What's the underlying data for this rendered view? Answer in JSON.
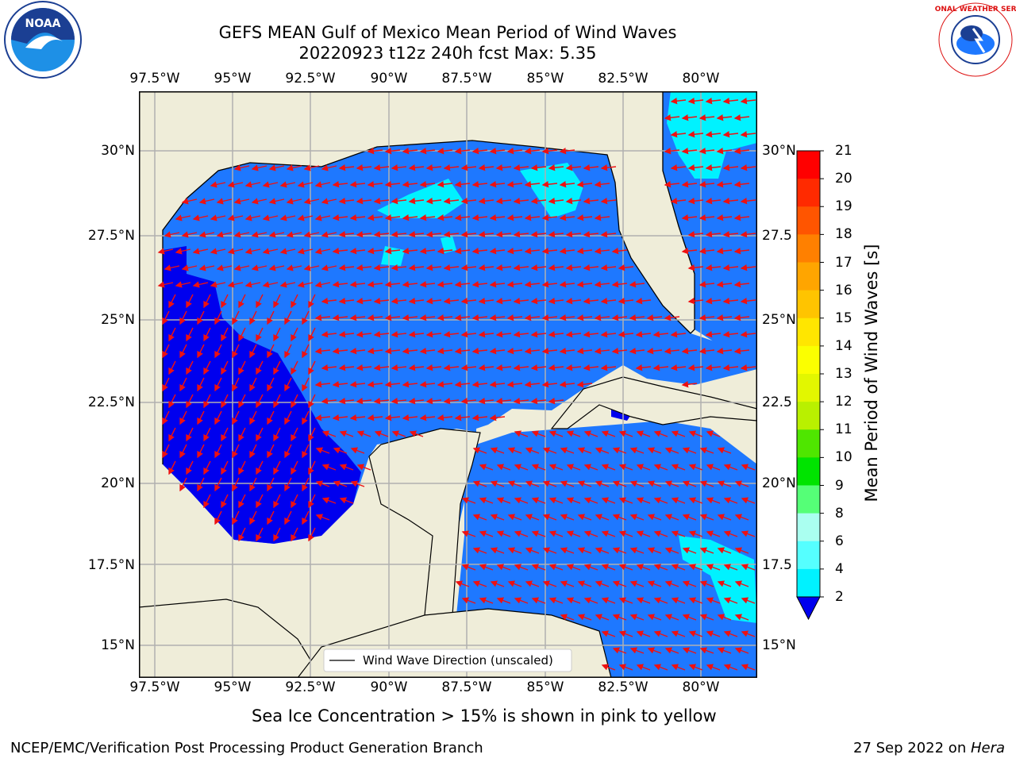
{
  "title": {
    "line1": "GEFS MEAN Gulf of Mexico Mean Period of Wind Waves",
    "line2": "20220923 t12z 240h fcst   Max: 5.35"
  },
  "logos": {
    "left_text": "NOAA",
    "right_text": "NATIONAL WEATHER SERVICE"
  },
  "map": {
    "lon_ticks": [
      "97.5°W",
      "95°W",
      "92.5°W",
      "90°W",
      "87.5°W",
      "85°W",
      "82.5°W",
      "80°W"
    ],
    "lat_ticks_left": [
      "30°N",
      "27.5°N",
      "25°N",
      "22.5°N",
      "20°N",
      "17.5°N",
      "15°N"
    ],
    "lat_ticks_right": [
      "30°N",
      "27.5",
      "25°N",
      "22.5",
      "20°N",
      "17.5",
      "15°N"
    ],
    "legend_label": "Wind Wave Direction (unscaled)",
    "colors": {
      "land": "#efedd9",
      "water_2_4": "#1e78ff",
      "water_lt2": "#0000ee",
      "water_4_6": "#00ffff",
      "arrow": "#ee1111",
      "grid": "#b0b0b0"
    }
  },
  "colorbar": {
    "title": "Mean Period of Wind Waves [s]",
    "labels": [
      "21",
      "20",
      "19",
      "18",
      "17",
      "16",
      "15",
      "14",
      "13",
      "12",
      "11",
      "10",
      "9",
      "8",
      "6",
      "4",
      "2"
    ],
    "colors": [
      "#ff0000",
      "#ff2a00",
      "#ff5500",
      "#ff8000",
      "#ffa500",
      "#ffc400",
      "#ffe600",
      "#fbff00",
      "#e2f700",
      "#b9f000",
      "#4fe600",
      "#00e400",
      "#55ff77",
      "#aafff0",
      "#55ffff",
      "#00f2ff",
      "#1e78ff"
    ],
    "under_color": "#0000ee"
  },
  "footer": {
    "ice_note": "Sea Ice Concentration > 15% is shown in pink to yellow",
    "credit": "NCEP/EMC/Verification Post Processing Product Generation Branch",
    "date": "27 Sep 2022 on ",
    "machine": "Hera"
  }
}
